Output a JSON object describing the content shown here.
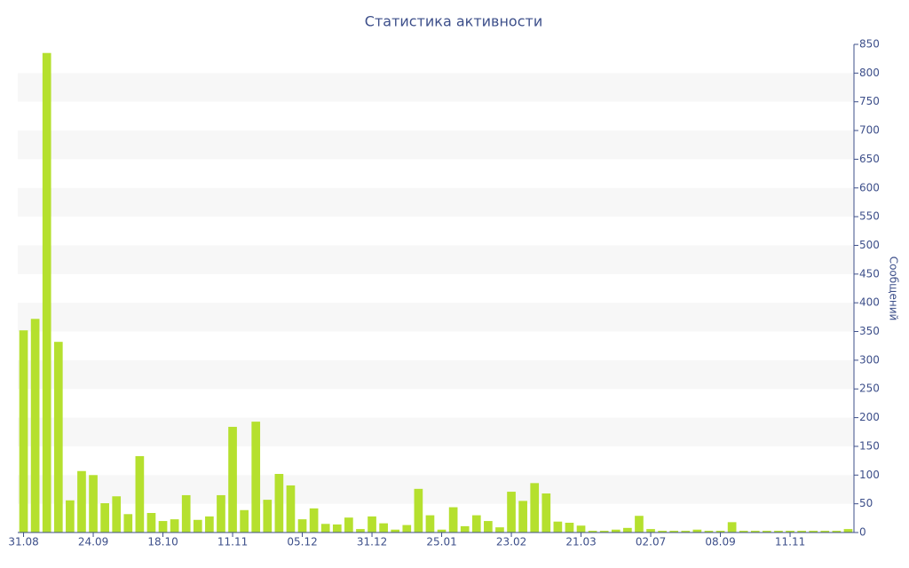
{
  "chart_data": {
    "type": "bar",
    "title": "Статистика активности",
    "y_label": "Сообщений",
    "categories": [
      "31.08",
      null,
      null,
      null,
      null,
      null,
      "24.09",
      null,
      null,
      null,
      null,
      null,
      "18.10",
      null,
      null,
      null,
      null,
      null,
      "11.11",
      null,
      null,
      null,
      null,
      null,
      "05.12",
      null,
      null,
      null,
      null,
      null,
      "31.12",
      null,
      null,
      null,
      null,
      null,
      "25.01",
      null,
      null,
      null,
      null,
      null,
      "23.02",
      null,
      null,
      null,
      null,
      null,
      "21.03",
      null,
      null,
      null,
      null,
      null,
      "02.07",
      null,
      null,
      null,
      null,
      null,
      "08.09",
      null,
      null,
      null,
      null,
      null,
      "11.11",
      null,
      null,
      null,
      null,
      null
    ],
    "values": [
      352,
      372,
      835,
      332,
      56,
      107,
      100,
      51,
      63,
      32,
      133,
      34,
      20,
      23,
      65,
      22,
      28,
      65,
      184,
      39,
      193,
      57,
      102,
      82,
      23,
      42,
      15,
      14,
      26,
      6,
      28,
      16,
      5,
      13,
      76,
      30,
      5,
      44,
      11,
      30,
      20,
      9,
      71,
      55,
      86,
      68,
      19,
      17,
      12,
      3,
      3,
      5,
      8,
      29,
      6,
      3,
      3,
      3,
      5,
      3,
      3,
      18,
      3,
      3,
      3,
      3,
      3,
      3,
      3,
      3,
      3,
      6
    ],
    "color": "#b5e02e",
    "ylim": [
      0,
      850
    ],
    "yticks": [
      0,
      50,
      100,
      150,
      200,
      250,
      300,
      350,
      400,
      450,
      500,
      550,
      600,
      650,
      700,
      750,
      800,
      850
    ],
    "y_axis_side": "right",
    "grid": "bands",
    "band_color": "#f7f7f7"
  }
}
